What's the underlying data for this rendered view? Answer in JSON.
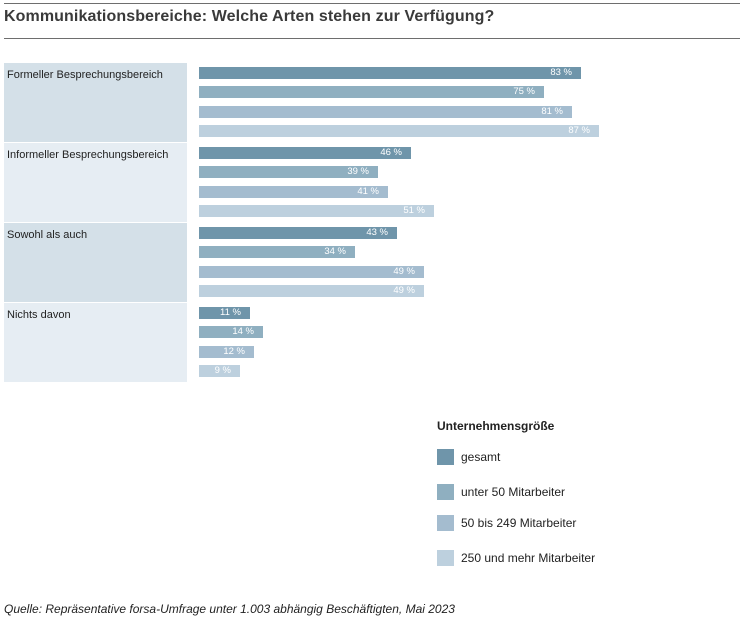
{
  "title": "Kommunikationsbereiche: Welche Arten stehen zur Verfügung?",
  "chart_data": {
    "type": "bar",
    "orientation": "horizontal",
    "categories": [
      "Formeller Besprechungsbereich",
      "Informeller Besprechungsbereich",
      "Sowohl als auch",
      "Nichts davon"
    ],
    "series": [
      {
        "name": "gesamt",
        "values": [
          83,
          46,
          43,
          11
        ],
        "color": "#6f95aa"
      },
      {
        "name": "unter 50 Mitarbeiter",
        "values": [
          75,
          39,
          34,
          14
        ],
        "color": "#8fafc0"
      },
      {
        "name": "50 bis 249 Mitarbeiter",
        "values": [
          81,
          41,
          49,
          12
        ],
        "color": "#a4bccf"
      },
      {
        "name": "250 und mehr Mitarbeiter",
        "values": [
          87,
          51,
          49,
          9
        ],
        "color": "#bdd0de"
      }
    ],
    "unit_suffix": " %",
    "xlim": [
      0,
      100
    ],
    "grid": false,
    "legend_title": "Unternehmensgröße",
    "legend_position": "bottom-right"
  },
  "group_colors": [
    "#d4e0e8",
    "#e6edf3"
  ],
  "source": "Quelle: Repräsentative forsa-Umfrage unter 1.003 abhängig Beschäftigten, Mai 2023"
}
